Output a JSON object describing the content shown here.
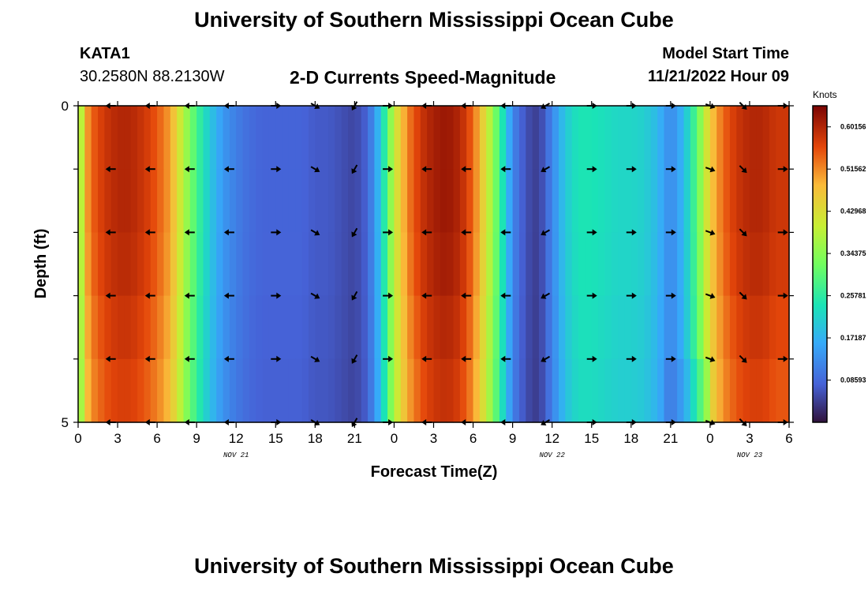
{
  "header": {
    "title": "University of Southern Mississippi Ocean Cube",
    "station": "KATA1",
    "coords": "30.2580N  88.2130W",
    "chart_title": "2-D Currents Speed-Magnitude",
    "model_start_label": "Model Start Time",
    "model_start_value": "11/21/2022 Hour 09"
  },
  "footer": {
    "title": "University of Southern Mississippi Ocean Cube"
  },
  "chart_data": {
    "type": "heatmap",
    "title": "2-D Currents Speed-Magnitude",
    "xlabel": "Forecast Time(Z)",
    "ylabel": "Depth (ft)",
    "x_ticks": [
      "0",
      "3",
      "6",
      "9",
      "12",
      "15",
      "18",
      "21",
      "0",
      "3",
      "6",
      "9",
      "12",
      "15",
      "18",
      "21",
      "0",
      "3",
      "6"
    ],
    "date_labels": [
      {
        "label": "NOV 21",
        "tick_index": 4
      },
      {
        "label": "NOV 22",
        "tick_index": 12
      },
      {
        "label": "NOV 23",
        "tick_index": 17
      }
    ],
    "y_ticks": [
      "0",
      "5"
    ],
    "ylim": [
      0,
      5
    ],
    "colorbar": {
      "unit": "Knots",
      "labels": [
        "0.60156",
        "0.51562",
        "0.42968",
        "0.34375",
        "0.25781",
        "0.17187",
        "0.08593"
      ],
      "range": [
        0,
        0.6445
      ]
    },
    "speed_profile": [
      [
        0,
        0.3
      ],
      [
        0.5,
        0.48
      ],
      [
        1,
        0.54
      ],
      [
        2,
        0.58
      ],
      [
        3,
        0.6
      ],
      [
        4,
        0.6
      ],
      [
        5,
        0.58
      ],
      [
        6,
        0.55
      ],
      [
        7,
        0.5
      ],
      [
        8,
        0.38
      ],
      [
        9,
        0.28
      ],
      [
        10,
        0.2
      ],
      [
        11,
        0.14
      ],
      [
        12,
        0.11
      ],
      [
        13,
        0.09
      ],
      [
        14,
        0.08
      ],
      [
        15,
        0.08
      ],
      [
        16,
        0.08
      ],
      [
        17,
        0.08
      ],
      [
        18,
        0.07
      ],
      [
        19,
        0.07
      ],
      [
        20,
        0.06
      ],
      [
        21,
        0.05
      ],
      [
        22,
        0.08
      ],
      [
        23,
        0.2
      ],
      [
        24,
        0.4
      ],
      [
        25,
        0.52
      ],
      [
        26,
        0.58
      ],
      [
        27,
        0.61
      ],
      [
        28,
        0.62
      ],
      [
        29,
        0.6
      ],
      [
        30,
        0.54
      ],
      [
        31,
        0.42
      ],
      [
        32,
        0.28
      ],
      [
        33,
        0.12
      ],
      [
        34,
        0.06
      ],
      [
        35,
        0.04
      ],
      [
        36,
        0.12
      ],
      [
        37,
        0.2
      ],
      [
        38,
        0.24
      ],
      [
        39,
        0.24
      ],
      [
        40,
        0.23
      ],
      [
        41,
        0.22
      ],
      [
        42,
        0.22
      ],
      [
        43,
        0.21
      ],
      [
        44,
        0.18
      ],
      [
        45,
        0.12
      ],
      [
        46,
        0.18
      ],
      [
        47,
        0.3
      ],
      [
        48,
        0.46
      ],
      [
        49,
        0.54
      ],
      [
        50,
        0.58
      ],
      [
        51,
        0.6
      ],
      [
        52,
        0.6
      ],
      [
        53,
        0.58
      ]
    ],
    "arrow_hours": [
      2.5,
      5.5,
      8.5,
      11.5,
      15,
      18,
      21,
      23.5,
      26.5,
      29.5,
      32.5,
      35.5,
      39,
      42,
      45,
      48,
      50.5,
      53.5
    ],
    "arrow_angles_deg": [
      180,
      180,
      180,
      180,
      0,
      30,
      120,
      0,
      180,
      180,
      180,
      150,
      0,
      0,
      0,
      20,
      45,
      0
    ]
  }
}
